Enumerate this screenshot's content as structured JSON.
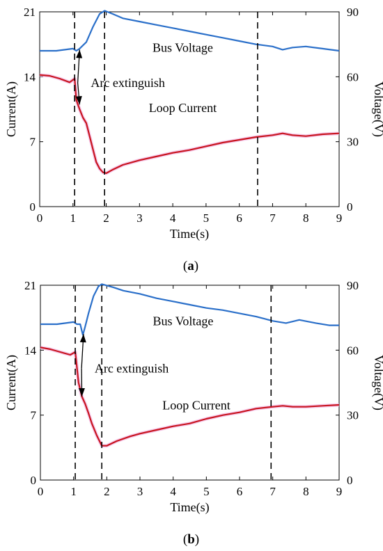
{
  "chart_data": [
    {
      "type": "line",
      "panel_label": "a",
      "xlabel": "Time(s)",
      "ylabel_left": "Current(A)",
      "ylabel_right": "Voltage(V)",
      "xlim": [
        0,
        9
      ],
      "ylim_left": [
        0,
        21
      ],
      "ylim_right": [
        0,
        90
      ],
      "xticks": [
        0,
        1,
        2,
        3,
        4,
        5,
        6,
        7,
        8,
        9
      ],
      "yticks_left": [
        0,
        7,
        14,
        21
      ],
      "yticks_right": [
        0,
        30,
        60,
        90
      ],
      "vlines": [
        1.05,
        1.95,
        6.55
      ],
      "annotations": [
        {
          "text": "Bus Voltage",
          "x": 4.3,
          "y": 16.7
        },
        {
          "text": "Loop Current",
          "x": 4.3,
          "y": 10.2
        },
        {
          "text": "Arc extinguish",
          "x": 2.65,
          "y": 12.9
        }
      ],
      "series": [
        {
          "name": "Bus Voltage",
          "axis": "right",
          "color": "#2a6fc9",
          "x": [
            0,
            0.5,
            1.0,
            1.1,
            1.2,
            1.4,
            1.6,
            1.8,
            1.95,
            2.2,
            2.5,
            3,
            3.5,
            4,
            4.5,
            5,
            5.5,
            6,
            6.5,
            7,
            7.3,
            7.6,
            8,
            8.5,
            9
          ],
          "y": [
            72,
            72,
            73,
            72,
            73,
            76,
            83,
            89,
            90.5,
            89,
            87,
            85.5,
            84,
            82.5,
            81,
            79.5,
            78,
            76.5,
            75,
            74,
            72.5,
            73.5,
            74,
            73,
            72
          ]
        },
        {
          "name": "Loop Current",
          "axis": "left",
          "color": "#c8141e",
          "x": [
            0,
            0.3,
            0.6,
            0.9,
            1.05,
            1.1,
            1.2,
            1.3,
            1.4,
            1.5,
            1.6,
            1.7,
            1.8,
            1.9,
            2.0,
            2.2,
            2.5,
            3,
            3.5,
            4,
            4.5,
            5,
            5.5,
            6,
            6.5,
            7,
            7.3,
            7.6,
            8,
            8.5,
            9
          ],
          "y": [
            14.2,
            14.1,
            13.8,
            13.4,
            13.8,
            11.5,
            10.5,
            9.6,
            9.0,
            7.6,
            6.2,
            4.8,
            4.1,
            3.7,
            3.6,
            4.0,
            4.5,
            5.0,
            5.4,
            5.8,
            6.1,
            6.5,
            6.9,
            7.2,
            7.5,
            7.7,
            7.9,
            7.7,
            7.6,
            7.8,
            7.9
          ]
        }
      ]
    },
    {
      "type": "line",
      "panel_label": "b",
      "xlabel": "Time(s)",
      "ylabel_left": "Current(A)",
      "ylabel_right": "Voltage(V)",
      "xlim": [
        0,
        9
      ],
      "ylim_left": [
        0,
        21
      ],
      "ylim_right": [
        0,
        90
      ],
      "xticks": [
        0,
        1,
        2,
        3,
        4,
        5,
        6,
        7,
        8,
        9
      ],
      "yticks_left": [
        0,
        7,
        14,
        21
      ],
      "yticks_right": [
        0,
        30,
        60,
        90
      ],
      "vlines": [
        1.05,
        1.85,
        6.95
      ],
      "annotations": [
        {
          "text": "Bus Voltage",
          "x": 4.3,
          "y": 16.7
        },
        {
          "text": "Loop Current",
          "x": 4.7,
          "y": 7.6
        },
        {
          "text": "Arc extinguish",
          "x": 2.75,
          "y": 11.6
        }
      ],
      "series": [
        {
          "name": "Bus Voltage",
          "axis": "right",
          "color": "#2a6fc9",
          "x": [
            0,
            0.5,
            1.0,
            1.1,
            1.2,
            1.28,
            1.35,
            1.45,
            1.6,
            1.75,
            1.85,
            2.2,
            2.5,
            3,
            3.5,
            4,
            4.5,
            5,
            5.5,
            6,
            6.5,
            7,
            7.4,
            7.8,
            8.3,
            8.7,
            9
          ],
          "y": [
            72,
            72,
            73,
            72,
            72,
            67,
            71,
            77,
            85,
            89.5,
            90.5,
            89,
            87.5,
            86,
            84,
            82.5,
            81,
            79.5,
            78.5,
            77,
            75.5,
            73.5,
            72.5,
            74,
            72.5,
            71.5,
            71.5
          ]
        },
        {
          "name": "Loop Current",
          "axis": "left",
          "color": "#c8141e",
          "x": [
            0,
            0.3,
            0.6,
            0.9,
            1.05,
            1.15,
            1.25,
            1.35,
            1.45,
            1.55,
            1.7,
            1.85,
            2.0,
            2.3,
            2.7,
            3,
            3.5,
            4,
            4.5,
            5,
            5.5,
            6,
            6.5,
            7,
            7.3,
            7.6,
            8,
            8.5,
            9
          ],
          "y": [
            14.3,
            14.1,
            13.8,
            13.5,
            13.8,
            10.5,
            9.0,
            8.2,
            7.2,
            6.1,
            4.8,
            3.7,
            3.7,
            4.2,
            4.7,
            5.0,
            5.4,
            5.8,
            6.1,
            6.6,
            7.0,
            7.3,
            7.7,
            7.9,
            8.0,
            7.9,
            7.9,
            8.0,
            8.1
          ]
        }
      ]
    }
  ]
}
